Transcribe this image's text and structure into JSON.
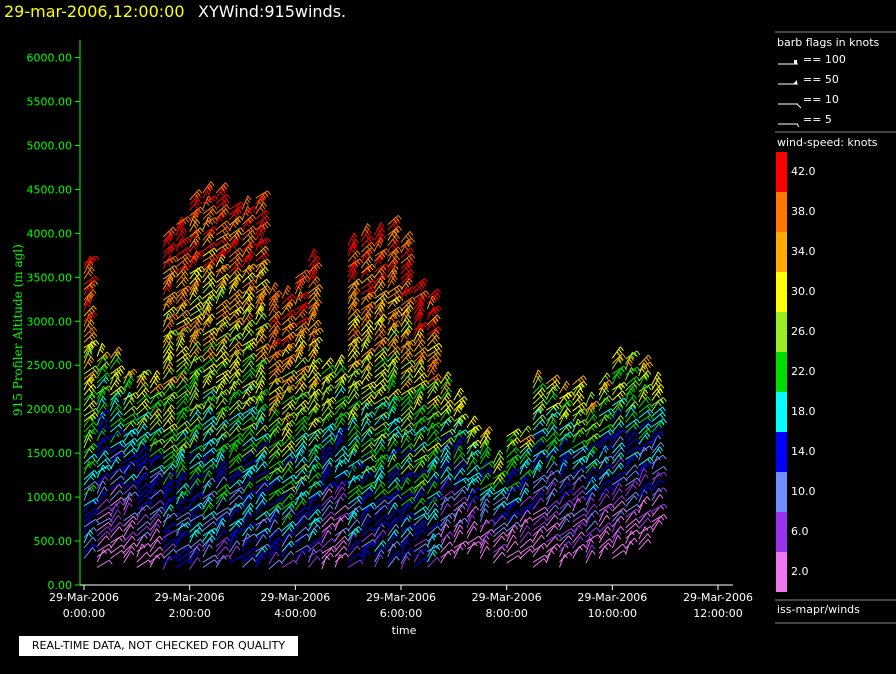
{
  "header": {
    "date": "29-mar-2006,12:00:00",
    "name": "XYWind:915winds."
  },
  "notice": "REAL-TIME DATA, NOT CHECKED FOR QUALITY",
  "source_label": "iss-mapr/winds",
  "barb_legend": {
    "title": "barb flags in knots",
    "entries": [
      "== 100",
      "== 50",
      "== 10",
      "== 5"
    ]
  },
  "color_legend": {
    "title": "wind-speed: knots",
    "levels": [
      {
        "label": "42.0",
        "color": "#ff0000"
      },
      {
        "label": "38.0",
        "color": "#ff7700"
      },
      {
        "label": "34.0",
        "color": "#ffaa00"
      },
      {
        "label": "30.0",
        "color": "#ffff00"
      },
      {
        "label": "26.0",
        "color": "#99ee22"
      },
      {
        "label": "22.0",
        "color": "#00dd00"
      },
      {
        "label": "18.0",
        "color": "#00ffff"
      },
      {
        "label": "14.0",
        "color": "#0000ff"
      },
      {
        "label": "10.0",
        "color": "#6f8fff"
      },
      {
        "label": "6.0",
        "color": "#9933ee"
      },
      {
        "label": "2.0",
        "color": "#ee77ee"
      }
    ]
  },
  "chart_data": {
    "type": "wind-barb",
    "ylabel": "915 Profiler Altitude (m agl)",
    "xlabel": "time",
    "ylim": [
      0,
      6200
    ],
    "y_ticks": [
      "0.00",
      "500.00",
      "1000.00",
      "1500.00",
      "2000.00",
      "2500.00",
      "3000.00",
      "3500.00",
      "4000.00",
      "4500.00",
      "5000.00",
      "5500.00",
      "6000.00"
    ],
    "x_ticks": [
      {
        "date": "29-Mar-2006",
        "time": "0:00:00"
      },
      {
        "date": "29-Mar-2006",
        "time": "2:00:00"
      },
      {
        "date": "29-Mar-2006",
        "time": "4:00:00"
      },
      {
        "date": "29-Mar-2006",
        "time": "6:00:00"
      },
      {
        "date": "29-Mar-2006",
        "time": "8:00:00"
      },
      {
        "date": "29-Mar-2006",
        "time": "10:00:00"
      },
      {
        "date": "29-Mar-2006",
        "time": "12:00:00"
      }
    ],
    "columns": [
      {
        "hour": 0.0,
        "top": 3700,
        "bottom": 300
      },
      {
        "hour": 0.25,
        "top": 2650,
        "bottom": 200
      },
      {
        "hour": 0.5,
        "top": 2600,
        "bottom": 300
      },
      {
        "hour": 0.75,
        "top": 2400,
        "bottom": 250
      },
      {
        "hour": 1.0,
        "top": 2400,
        "bottom": 200
      },
      {
        "hour": 1.25,
        "top": 2300,
        "bottom": 200
      },
      {
        "hour": 1.5,
        "top": 4000,
        "bottom": 180
      },
      {
        "hour": 1.75,
        "top": 4100,
        "bottom": 200
      },
      {
        "hour": 2.0,
        "top": 4400,
        "bottom": 180
      },
      {
        "hour": 2.25,
        "top": 4500,
        "bottom": 200
      },
      {
        "hour": 2.5,
        "top": 4500,
        "bottom": 200
      },
      {
        "hour": 2.75,
        "top": 4300,
        "bottom": 250
      },
      {
        "hour": 3.0,
        "top": 4300,
        "bottom": 200
      },
      {
        "hour": 3.25,
        "top": 4400,
        "bottom": 200
      },
      {
        "hour": 3.5,
        "top": 3300,
        "bottom": 180
      },
      {
        "hour": 3.75,
        "top": 3300,
        "bottom": 200
      },
      {
        "hour": 4.0,
        "top": 3500,
        "bottom": 250
      },
      {
        "hour": 4.25,
        "top": 3700,
        "bottom": 200
      },
      {
        "hour": 4.5,
        "top": 2500,
        "bottom": 180
      },
      {
        "hour": 4.75,
        "top": 2500,
        "bottom": 200
      },
      {
        "hour": 5.0,
        "top": 3900,
        "bottom": 200
      },
      {
        "hour": 5.25,
        "top": 4000,
        "bottom": 250
      },
      {
        "hour": 5.5,
        "top": 4000,
        "bottom": 200
      },
      {
        "hour": 5.75,
        "top": 4150,
        "bottom": 200
      },
      {
        "hour": 6.0,
        "top": 3900,
        "bottom": 180
      },
      {
        "hour": 6.25,
        "top": 3400,
        "bottom": 200
      },
      {
        "hour": 6.5,
        "top": 3300,
        "bottom": 200
      },
      {
        "hour": 6.75,
        "top": 2300,
        "bottom": 250
      },
      {
        "hour": 7.0,
        "top": 2100,
        "bottom": 300
      },
      {
        "hour": 7.25,
        "top": 1800,
        "bottom": 350
      },
      {
        "hour": 7.5,
        "top": 1700,
        "bottom": 300
      },
      {
        "hour": 7.75,
        "top": 1400,
        "bottom": 250
      },
      {
        "hour": 8.0,
        "top": 1700,
        "bottom": 250
      },
      {
        "hour": 8.25,
        "top": 1700,
        "bottom": 300
      },
      {
        "hour": 8.5,
        "top": 2300,
        "bottom": 200
      },
      {
        "hour": 8.75,
        "top": 2300,
        "bottom": 250
      },
      {
        "hour": 9.0,
        "top": 2200,
        "bottom": 200
      },
      {
        "hour": 9.25,
        "top": 2300,
        "bottom": 300
      },
      {
        "hour": 9.5,
        "top": 2100,
        "bottom": 250
      },
      {
        "hour": 9.75,
        "top": 2300,
        "bottom": 300
      },
      {
        "hour": 10.0,
        "top": 2600,
        "bottom": 300
      },
      {
        "hour": 10.25,
        "top": 2600,
        "bottom": 350
      },
      {
        "hour": 10.5,
        "top": 2500,
        "bottom": 400
      },
      {
        "hour": 10.75,
        "top": 2300,
        "bottom": 600
      }
    ]
  }
}
